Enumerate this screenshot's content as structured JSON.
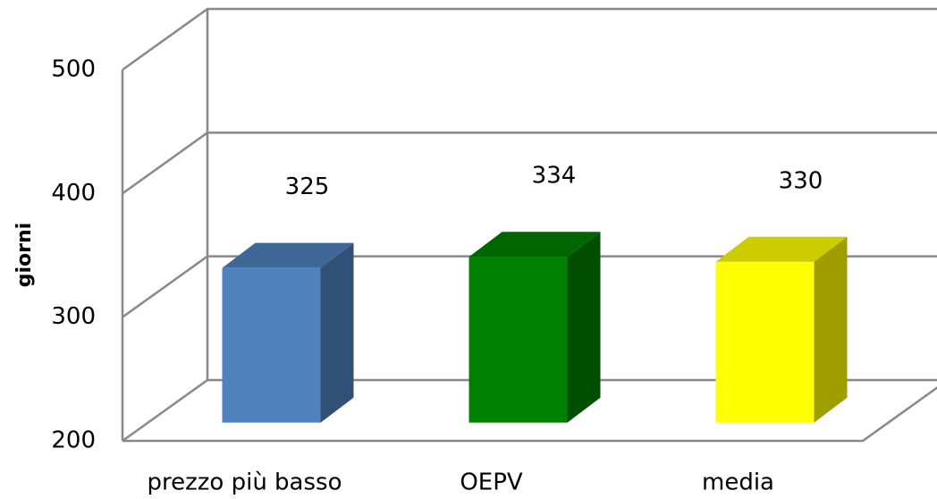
{
  "chart_data": {
    "type": "bar3d",
    "y_label": "giorni",
    "categories": [
      "prezzo più basso",
      "OEPV",
      "media"
    ],
    "values": [
      325,
      334,
      330
    ],
    "colors": [
      "#4f81bd",
      "#008000",
      "#ffff00"
    ],
    "ylim": [
      200,
      500
    ],
    "yticks": [
      200,
      300,
      400,
      500
    ],
    "grid": true
  }
}
